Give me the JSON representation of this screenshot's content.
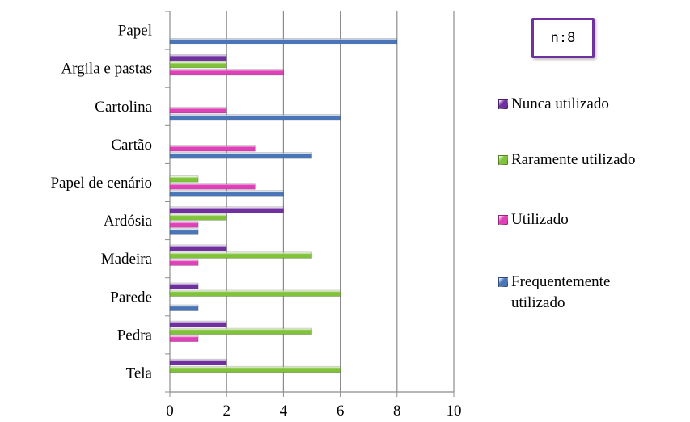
{
  "note": "n:8",
  "chart_data": {
    "type": "bar",
    "orientation": "horizontal",
    "categories": [
      "Papel",
      "Argila e pastas",
      "Cartolina",
      "Cartão",
      "Papel de cenário",
      "Ardósia",
      "Madeira",
      "Parede",
      "Pedra",
      "Tela"
    ],
    "series": [
      {
        "name": "Nunca utilizado",
        "color": "#7030a0",
        "values": [
          0,
          2,
          0,
          0,
          0,
          4,
          2,
          1,
          2,
          2
        ]
      },
      {
        "name": "Raramente utilizado",
        "color": "#80c33a",
        "values": [
          0,
          2,
          0,
          0,
          1,
          2,
          5,
          6,
          5,
          6
        ]
      },
      {
        "name": "Utilizado",
        "color": "#e040b8",
        "values": [
          0,
          4,
          2,
          3,
          3,
          1,
          1,
          0,
          1,
          0
        ]
      },
      {
        "name": "Frequentemente utilizado",
        "color": "#4a76b8",
        "values": [
          8,
          0,
          6,
          5,
          4,
          1,
          0,
          1,
          0,
          0
        ]
      }
    ],
    "x_ticks": [
      "0",
      "2",
      "4",
      "6",
      "8",
      "10"
    ],
    "xlim": [
      0,
      10
    ],
    "grid": true,
    "legend_position": "right",
    "legend_order": [
      "Nunca utilizado",
      "Raramente utilizado",
      "Utilizado",
      "Frequentemente utilizado"
    ]
  }
}
